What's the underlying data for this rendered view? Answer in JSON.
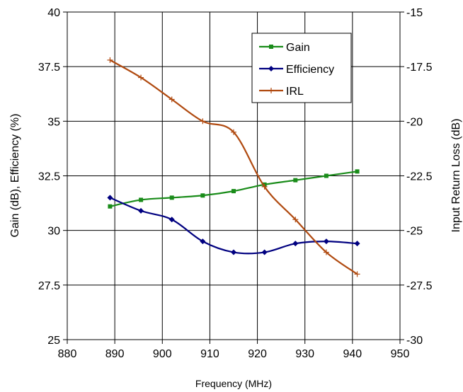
{
  "chart_data": {
    "type": "line",
    "xlabel": "Frequency (MHz)",
    "ylabel_left": "Gain (dB), Efficiency (%)",
    "ylabel_right": "Input Return Loss (dB)",
    "xlim": [
      880,
      950
    ],
    "x_ticks": [
      880,
      890,
      900,
      910,
      920,
      930,
      940,
      950
    ],
    "ylim_left": [
      25,
      40
    ],
    "y_left_ticks": [
      "25",
      "27.5",
      "30",
      "32.5",
      "35",
      "37.5",
      "40"
    ],
    "ylim_right": [
      -30,
      -15
    ],
    "y_right_ticks": [
      "-30",
      "-27.5",
      "-25",
      "-22.5",
      "-20",
      "-17.5",
      "-15"
    ],
    "grid": true,
    "legend_position": "top-right",
    "series": [
      {
        "name": "Gain",
        "axis": "left",
        "color": "#1a8c1a",
        "marker": "square",
        "x": [
          889,
          895.5,
          902,
          908.5,
          915,
          921.5,
          928,
          934.5,
          941
        ],
        "y": [
          31.1,
          31.4,
          31.5,
          31.6,
          31.8,
          32.1,
          32.3,
          32.5,
          32.7
        ]
      },
      {
        "name": "Efficiency",
        "axis": "left",
        "color": "#000080",
        "marker": "diamond",
        "x": [
          889,
          895.5,
          902,
          908.5,
          915,
          921.5,
          928,
          934.5,
          941
        ],
        "y": [
          31.5,
          30.9,
          30.5,
          29.5,
          29.0,
          29.0,
          29.4,
          29.5,
          29.4
        ]
      },
      {
        "name": "IRL",
        "axis": "right",
        "color": "#b04a10",
        "marker": "plus",
        "x": [
          889,
          895.5,
          902,
          908.5,
          915,
          921.5,
          928,
          934.5,
          941
        ],
        "y": [
          -17.2,
          -18.0,
          -19.0,
          -20.0,
          -20.5,
          -23.0,
          -24.5,
          -26.0,
          -27.0
        ]
      }
    ]
  }
}
